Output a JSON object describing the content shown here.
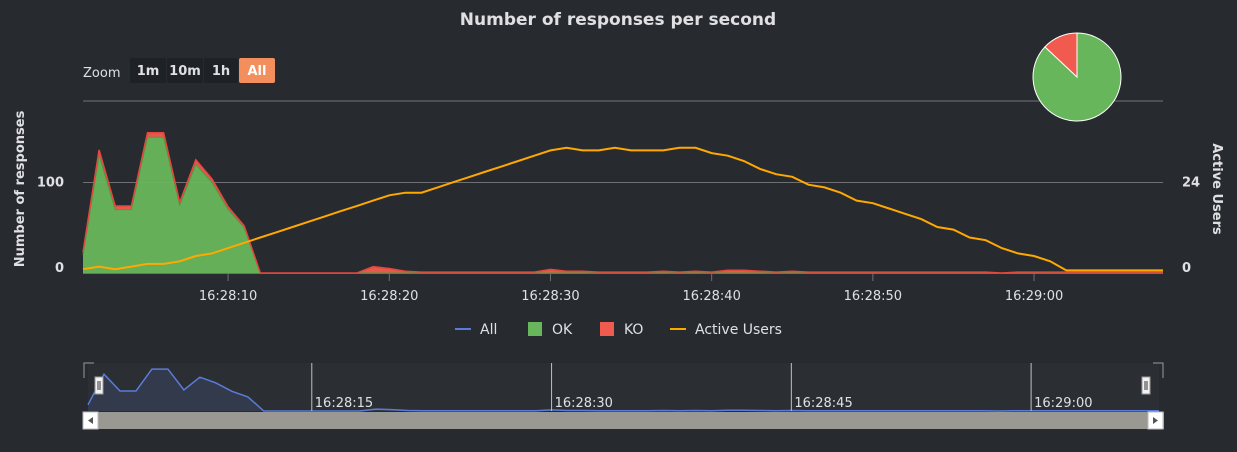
{
  "chart_data": {
    "type": "area",
    "title": "Number of responses per second",
    "ylabel": "Number of responses",
    "y2label": "Active Users",
    "ylim": [
      0,
      190
    ],
    "y2lim": [
      0,
      45.6
    ],
    "y_ticks": [
      0,
      100
    ],
    "y2_ticks": [
      0,
      24
    ],
    "x_tick_labels": [
      "16:28:10",
      "16:28:20",
      "16:28:30",
      "16:28:40",
      "16:28:50",
      "16:29:00"
    ],
    "x_start": "16:28:01",
    "x_end": "16:29:08",
    "legend": {
      "position": "bottom-center"
    },
    "colors": {
      "all": "#5b7bd8",
      "ok": "#68b65c",
      "ko": "#f15b4f",
      "users": "#ffa900"
    },
    "series": [
      {
        "name": "OK",
        "color": "#68b65c",
        "values": [
          20,
          130,
          70,
          70,
          150,
          150,
          75,
          120,
          100,
          70,
          50,
          0,
          0,
          0,
          0,
          0,
          0,
          0,
          0,
          0,
          0,
          0,
          0,
          0,
          0,
          0,
          0,
          0,
          0,
          0,
          0,
          0,
          0,
          0,
          0,
          0,
          0,
          0,
          0,
          0,
          0,
          0,
          0,
          0,
          0,
          0,
          0,
          0,
          0,
          0,
          0,
          0,
          0,
          0,
          0,
          0,
          0,
          0,
          0,
          0,
          0,
          0,
          0,
          0,
          0,
          0,
          0,
          0
        ]
      },
      {
        "name": "KO",
        "color": "#f15b4f",
        "values": [
          3,
          6,
          4,
          4,
          5,
          5,
          3,
          5,
          4,
          3,
          2,
          0,
          0,
          0,
          0,
          0,
          0,
          0,
          7,
          5,
          2,
          1,
          1,
          1,
          1,
          1,
          1,
          1,
          1,
          4,
          2,
          2,
          1,
          1,
          1,
          1,
          2,
          1,
          2,
          1,
          3,
          3,
          2,
          1,
          2,
          1,
          1,
          1,
          1,
          1,
          1,
          1,
          1,
          1,
          1,
          1,
          1,
          0,
          1,
          1,
          1,
          1,
          1,
          1,
          1,
          1,
          1,
          1
        ]
      },
      {
        "name": "All",
        "color": "#5b7bd8",
        "values": [
          23,
          136,
          74,
          74,
          155,
          155,
          78,
          125,
          104,
          73,
          52,
          0,
          0,
          0,
          0,
          0,
          0,
          0,
          7,
          5,
          2,
          1,
          1,
          1,
          1,
          1,
          1,
          1,
          1,
          4,
          2,
          2,
          1,
          1,
          1,
          1,
          2,
          1,
          2,
          1,
          3,
          3,
          2,
          1,
          2,
          1,
          1,
          1,
          1,
          1,
          1,
          1,
          1,
          1,
          1,
          1,
          1,
          0,
          1,
          1,
          1,
          1,
          1,
          1,
          1,
          1,
          1,
          1
        ]
      },
      {
        "name": "Active Users",
        "color": "#ffa900",
        "values": [
          1,
          1.7,
          1,
          1.7,
          2.4,
          2.4,
          3.1,
          4.5,
          5.2,
          6.6,
          8,
          9.4,
          10.8,
          12.2,
          13.6,
          15,
          16.4,
          17.8,
          19.2,
          20.6,
          21.3,
          21.3,
          22.7,
          24.1,
          25.5,
          26.9,
          28.3,
          29.7,
          31.1,
          32.5,
          33.2,
          32.5,
          32.5,
          33.2,
          32.5,
          32.5,
          32.5,
          33.2,
          33.2,
          31.8,
          31.1,
          29.7,
          27.6,
          26.2,
          25.5,
          23.4,
          22.7,
          21.3,
          19.2,
          18.5,
          17.1,
          15.7,
          14.3,
          12.2,
          11.5,
          9.4,
          8.7,
          6.6,
          5.2,
          4.5,
          3.1,
          0.7,
          0.7,
          0.7,
          0.7,
          0.7,
          0.7,
          0.7
        ]
      }
    ],
    "pie": {
      "slices": [
        {
          "name": "OK",
          "value": 87,
          "color": "#68b65c"
        },
        {
          "name": "KO",
          "value": 13,
          "color": "#f15b4f"
        }
      ]
    },
    "navigator": {
      "series": "All",
      "tick_labels": [
        "16:28:15",
        "16:28:30",
        "16:28:45",
        "16:29:00"
      ]
    }
  },
  "zoom": {
    "label": "Zoom",
    "buttons": [
      {
        "label": "1m",
        "active": false
      },
      {
        "label": "10m",
        "active": false
      },
      {
        "label": "1h",
        "active": false
      },
      {
        "label": "All",
        "active": true
      }
    ]
  },
  "legend_items": [
    {
      "label": "All",
      "symbol": "line",
      "color": "#5b7bd8"
    },
    {
      "label": "OK",
      "symbol": "square",
      "color": "#68b65c"
    },
    {
      "label": "KO",
      "symbol": "square",
      "color": "#f15b4f"
    },
    {
      "label": "Active Users",
      "symbol": "line",
      "color": "#ffa900"
    }
  ]
}
